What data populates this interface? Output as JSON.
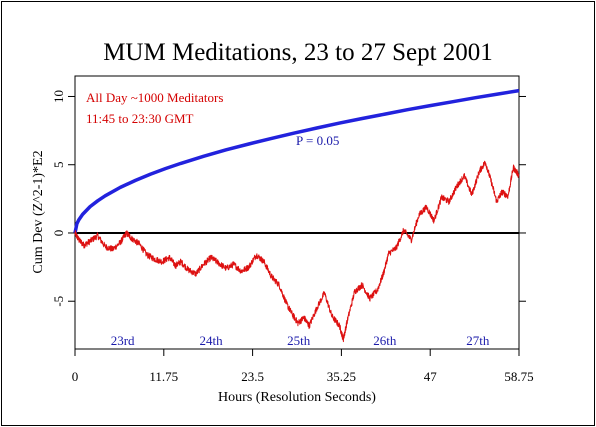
{
  "chart_data": {
    "type": "line",
    "title": "MUM Meditations, 23 to 27 Sept 2001",
    "xlabel": "Hours (Resolution Seconds)",
    "ylabel": "Cum Dev (Z^2-1)*E2",
    "xlim": [
      0,
      58.75
    ],
    "ylim": [
      -8.5,
      11.5
    ],
    "x_ticks": [
      0,
      11.75,
      23.5,
      35.25,
      47,
      58.75
    ],
    "x_tick_labels": [
      "0",
      "11.75",
      "23.5",
      "35.25",
      "47",
      "58.75"
    ],
    "y_ticks": [
      -5,
      0,
      5,
      10
    ],
    "y_tick_labels": [
      "-5",
      "0",
      "5",
      "10"
    ],
    "zero_line": 0,
    "annotations": [
      {
        "text": "All Day ~1000 Meditators",
        "color": "#d40000"
      },
      {
        "text": "11:45 to 23:30 GMT",
        "color": "#d40000"
      },
      {
        "text": "P = 0.05",
        "color": "#1a1aaa"
      }
    ],
    "day_labels": [
      {
        "text": "23rd",
        "x": 6.3
      },
      {
        "text": "24th",
        "x": 18.0
      },
      {
        "text": "25th",
        "x": 29.6
      },
      {
        "text": "26th",
        "x": 41.0
      },
      {
        "text": "27th",
        "x": 53.3
      }
    ],
    "series": [
      {
        "role": "probability-envelope",
        "color": "#2222dd",
        "x": [
          0,
          0.25,
          0.5,
          1,
          2,
          3,
          4,
          6,
          8,
          10,
          12,
          14,
          17,
          20,
          23,
          26,
          29,
          32,
          35,
          38,
          41,
          44,
          47,
          50,
          53,
          56,
          58.75
        ],
        "y": [
          0,
          0.68,
          0.96,
          1.36,
          1.93,
          2.36,
          2.72,
          3.34,
          3.85,
          4.31,
          4.72,
          5.1,
          5.62,
          6.09,
          6.52,
          6.93,
          7.32,
          7.69,
          8.05,
          8.39,
          8.71,
          9.03,
          9.33,
          9.62,
          9.91,
          10.18,
          10.43
        ]
      },
      {
        "role": "cumulative-deviation",
        "color": "#dd1111",
        "x": [
          0,
          0.5,
          1.2,
          2.0,
          3.0,
          4.0,
          5.0,
          6.0,
          6.8,
          7.5,
          8.5,
          9.5,
          10.5,
          11.5,
          12.5,
          13.3,
          14.0,
          15.0,
          16.0,
          17.0,
          18.0,
          19.0,
          20.0,
          21.0,
          22.0,
          23.0,
          24.0,
          25.0,
          26.0,
          27.0,
          28.0,
          28.8,
          29.5,
          30.3,
          31.0,
          32.0,
          33.0,
          34.0,
          35.0,
          35.5,
          36.0,
          37.0,
          38.0,
          39.0,
          40.0,
          40.8,
          41.5,
          42.5,
          43.5,
          44.5,
          45.5,
          46.5,
          47.5,
          48.5,
          49.5,
          50.5,
          51.5,
          52.5,
          53.5,
          54.3,
          55.0,
          55.8,
          56.5,
          57.3,
          58.0,
          58.75
        ],
        "y": [
          0,
          -0.5,
          -0.9,
          -0.6,
          -0.2,
          -1.0,
          -1.2,
          -0.7,
          0.0,
          -0.4,
          -0.8,
          -1.6,
          -1.9,
          -2.1,
          -1.8,
          -2.4,
          -2.1,
          -2.7,
          -3.0,
          -2.3,
          -1.8,
          -2.2,
          -2.6,
          -2.3,
          -2.8,
          -2.5,
          -1.6,
          -2.1,
          -3.2,
          -3.8,
          -5.2,
          -6.0,
          -6.6,
          -6.2,
          -6.8,
          -5.5,
          -4.4,
          -6.1,
          -6.8,
          -7.8,
          -6.5,
          -4.3,
          -3.8,
          -4.8,
          -4.2,
          -3.0,
          -1.5,
          -1.1,
          0.2,
          -0.5,
          1.3,
          1.9,
          0.9,
          2.6,
          2.3,
          3.4,
          4.2,
          2.8,
          4.5,
          5.2,
          3.9,
          2.3,
          3.0,
          2.7,
          4.8,
          4.2
        ]
      }
    ]
  }
}
